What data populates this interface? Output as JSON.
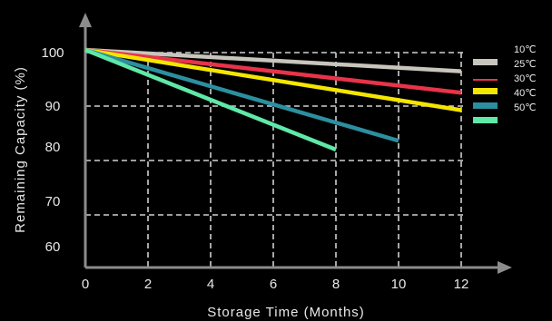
{
  "chart_data": {
    "type": "line",
    "xlabel": "Storage  Time  (Months)",
    "ylabel": "Remaining Capacity (%)",
    "x_ticks": [
      "0",
      "2",
      "4",
      "6",
      "8",
      "10",
      "12"
    ],
    "y_ticks": [
      "60",
      "70",
      "80",
      "90",
      "100"
    ],
    "y_tick_values": [
      60,
      70,
      80,
      90,
      100
    ],
    "xlim": [
      0,
      12
    ],
    "grid": true,
    "legend_position": "top-right",
    "series": [
      {
        "name": "10℃",
        "color": "#c8c5bd",
        "x": [
          0,
          12
        ],
        "y": [
          100.5,
          96.5
        ]
      },
      {
        "name": "25℃",
        "color": "#e8334a",
        "x": [
          0,
          12
        ],
        "y": [
          100.5,
          92.5
        ]
      },
      {
        "name": "30℃",
        "color": "#f5e600",
        "x": [
          0,
          12
        ],
        "y": [
          100.5,
          89.0
        ]
      },
      {
        "name": "40℃",
        "color": "#2c8f9f",
        "x": [
          0,
          10
        ],
        "y": [
          100.5,
          81.5
        ]
      },
      {
        "name": "50℃",
        "color": "#5fe8a8",
        "x": [
          0,
          8
        ],
        "y": [
          100.5,
          79.5
        ]
      }
    ]
  }
}
